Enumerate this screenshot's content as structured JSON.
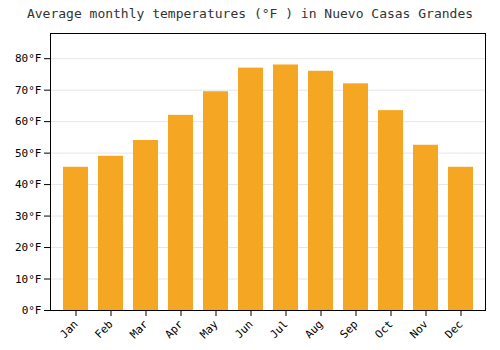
{
  "chart_data": {
    "type": "bar",
    "title": "Average monthly temperatures (°F ) in Nuevo Casas Grandes",
    "categories": [
      "Jan",
      "Feb",
      "Mar",
      "Apr",
      "May",
      "Jun",
      "Jul",
      "Aug",
      "Sep",
      "Oct",
      "Nov",
      "Dec"
    ],
    "values": [
      45.5,
      49.0,
      54.0,
      62.0,
      69.5,
      77.0,
      78.0,
      76.0,
      72.0,
      63.5,
      52.5,
      45.5
    ],
    "color": "#F5A623",
    "ylim": [
      0,
      88
    ],
    "yticks": [
      {
        "value": 0,
        "label": "0°F"
      },
      {
        "value": 10,
        "label": "10°F"
      },
      {
        "value": 20,
        "label": "20°F"
      },
      {
        "value": 30,
        "label": "30°F"
      },
      {
        "value": 40,
        "label": "40°F"
      },
      {
        "value": 50,
        "label": "50°F"
      },
      {
        "value": 60,
        "label": "60°F"
      },
      {
        "value": 70,
        "label": "70°F"
      },
      {
        "value": 80,
        "label": "80°F"
      }
    ],
    "grid": true
  }
}
